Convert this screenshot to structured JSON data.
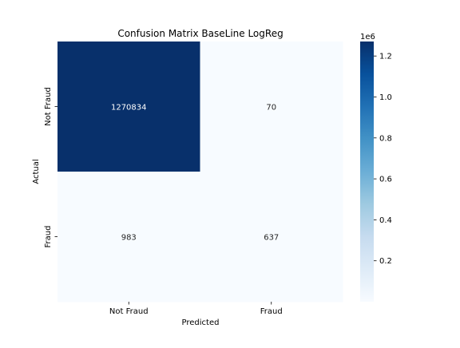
{
  "chart_data": {
    "type": "heatmap",
    "title": "Confusion Matrix BaseLine LogReg",
    "xlabel": "Predicted",
    "ylabel": "Actual",
    "x_categories": [
      "Not Fraud",
      "Fraud"
    ],
    "y_categories": [
      "Not Fraud",
      "Fraud"
    ],
    "matrix": [
      [
        1270834,
        70
      ],
      [
        983,
        637
      ]
    ],
    "colormap": "Blues",
    "colormap_stops": [
      "#f7fbff",
      "#deebf7",
      "#c6dbef",
      "#9ecae1",
      "#6baed6",
      "#4292c6",
      "#2171b5",
      "#08519c",
      "#08306b"
    ],
    "colorbar": {
      "range": [
        70,
        1270834
      ],
      "ticks": [
        0.2,
        0.4,
        0.6,
        0.8,
        1.0,
        1.2
      ],
      "tick_labels": [
        "0.2",
        "0.4",
        "0.6",
        "0.8",
        "1.0",
        "1.2"
      ],
      "offset_label": "1e6"
    },
    "annotation_colors": {
      "on_dark": "#ffffff",
      "on_light": "#262626"
    }
  }
}
